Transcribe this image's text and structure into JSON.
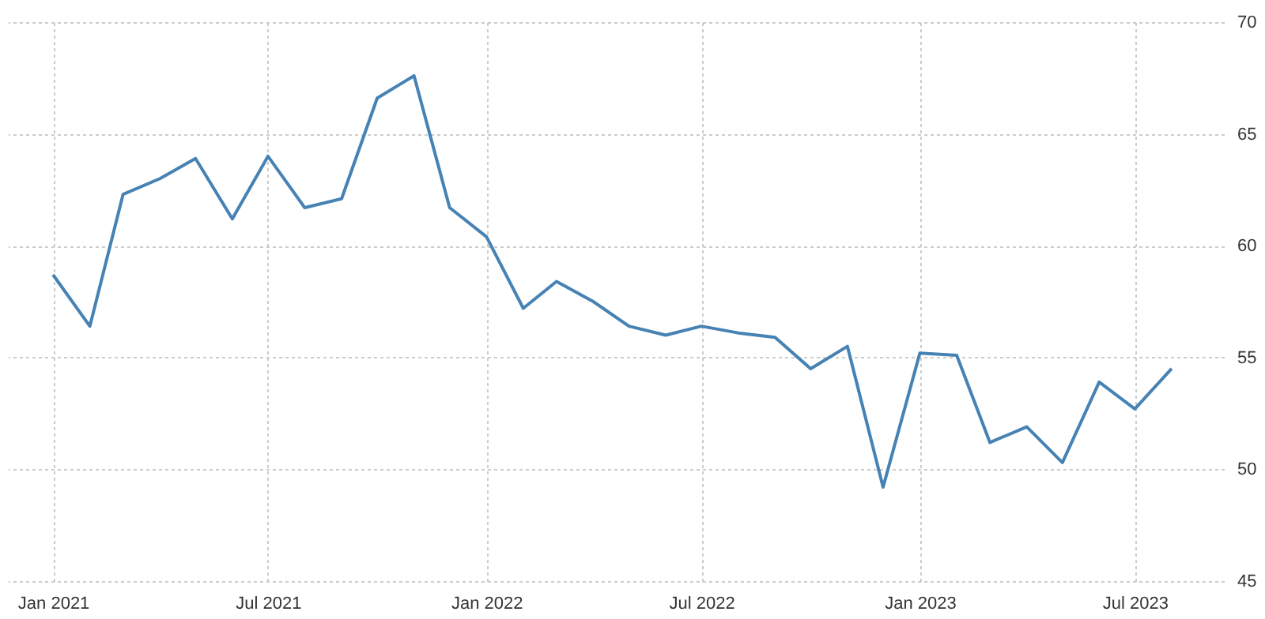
{
  "chart_data": {
    "type": "line",
    "x": [
      "2021-01",
      "2021-02",
      "2021-03",
      "2021-04",
      "2021-05",
      "2021-06",
      "2021-07",
      "2021-08",
      "2021-09",
      "2021-10",
      "2021-11",
      "2021-12",
      "2022-01",
      "2022-02",
      "2022-03",
      "2022-04",
      "2022-05",
      "2022-06",
      "2022-07",
      "2022-08",
      "2022-09",
      "2022-10",
      "2022-11",
      "2022-12",
      "2023-01",
      "2023-02",
      "2023-03",
      "2023-04",
      "2023-05",
      "2023-06",
      "2023-07",
      "2023-08"
    ],
    "series": [
      {
        "color": "#4682b4",
        "values": [
          58.7,
          56.4,
          62.3,
          63.0,
          63.9,
          61.2,
          64.0,
          61.7,
          62.1,
          66.6,
          67.6,
          61.7,
          60.4,
          57.2,
          58.4,
          57.5,
          56.4,
          56.0,
          56.4,
          56.1,
          55.9,
          54.5,
          55.5,
          49.2,
          55.2,
          55.1,
          51.2,
          51.9,
          50.3,
          53.9,
          52.7,
          54.5
        ]
      }
    ],
    "xlim": [
      "2020-11-24",
      "2023-09-14"
    ],
    "xticks": [
      {
        "value": "2021-01",
        "label": "Jan 2021"
      },
      {
        "value": "2021-07",
        "label": "Jul 2021"
      },
      {
        "value": "2022-01",
        "label": "Jan 2022"
      },
      {
        "value": "2022-07",
        "label": "Jul 2022"
      },
      {
        "value": "2023-01",
        "label": "Jan 2023"
      },
      {
        "value": "2023-07",
        "label": "Jul 2023"
      }
    ],
    "ylim": [
      45,
      70
    ],
    "yticks": [
      45,
      50,
      55,
      60,
      65,
      70
    ],
    "grid": true,
    "legend": false,
    "marker": "none",
    "line_style": "solid"
  }
}
